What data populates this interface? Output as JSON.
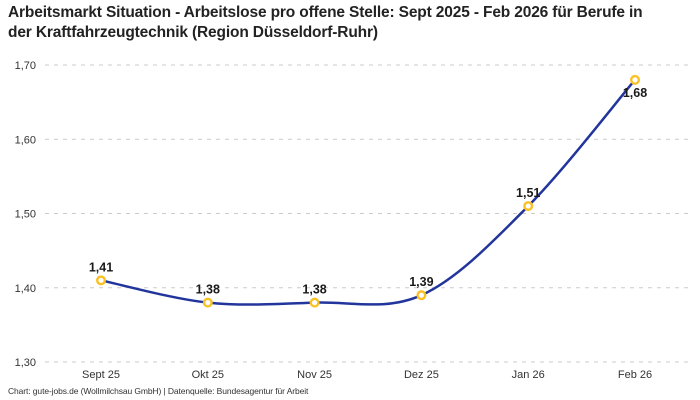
{
  "title": "Arbeitsmarkt Situation - Arbeitslose pro offene Stelle: Sept 2025 - Feb 2026 für Berufe in der Kraftfahrzeugtechnik (Region Düsseldorf-Ruhr)",
  "footer": "Chart: gute-jobs.de (Wollmilchsau GmbH) | Datenquelle: Bundesagentur für Arbeit",
  "colors": {
    "line": "#22359C",
    "marker_ring": "#FAC125",
    "marker_fill": "#FFFFFF",
    "grid": "#CBCBCB",
    "title_text": "#222222",
    "axis_text": "#333333",
    "point_label_text": "#1A1A1A"
  },
  "chart_data": {
    "type": "line",
    "title": "Arbeitsmarkt Situation - Arbeitslose pro offene Stelle: Sept 2025 - Feb 2026 für Berufe in der Kraftfahrzeugtechnik (Region Düsseldorf-Ruhr)",
    "categories": [
      "Sept 25",
      "Okt 25",
      "Nov 25",
      "Dez 25",
      "Jan 26",
      "Feb 26"
    ],
    "values": [
      1.41,
      1.38,
      1.38,
      1.39,
      1.51,
      1.68
    ],
    "point_labels": [
      "1,41",
      "1,38",
      "1,38",
      "1,39",
      "1,51",
      "1,68"
    ],
    "point_label_positions": [
      "above",
      "above",
      "above",
      "above",
      "above",
      "below"
    ],
    "y_ticks": [
      1.3,
      1.4,
      1.5,
      1.6,
      1.7
    ],
    "y_tick_labels": [
      "1,30",
      "1,40",
      "1,50",
      "1,60",
      "1,70"
    ],
    "ylim": [
      1.3,
      1.7
    ],
    "xlabel": "",
    "ylabel": "",
    "grid": "dashed-horizontal",
    "legend": "none"
  }
}
